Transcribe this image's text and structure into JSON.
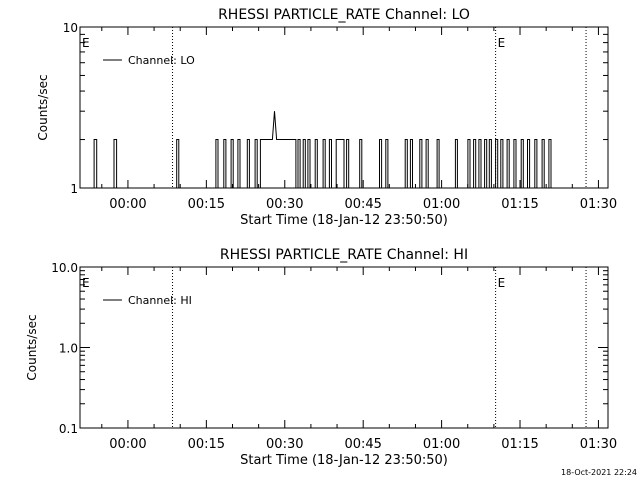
{
  "footer": {
    "timestamp": "18-Oct-2021 22:24"
  },
  "chart_data": [
    {
      "type": "line",
      "title": "RHESSI PARTICLE_RATE Channel: LO",
      "xlabel": "Start Time (18-Jan-12 23:50:50)",
      "ylabel": "Counts/sec",
      "x_tick_labels": [
        "00:00",
        "00:15",
        "00:30",
        "00:45",
        "01:00",
        "01:15",
        "01:30"
      ],
      "x_tick_minutes": [
        9.17,
        24.17,
        39.17,
        54.17,
        69.17,
        84.17,
        99.17
      ],
      "xlim_minutes": [
        0,
        101
      ],
      "y_scale": "log",
      "ylim": [
        1,
        10
      ],
      "y_tick_labels": [
        "1",
        "10"
      ],
      "y_tick_values": [
        1,
        10
      ],
      "legend": {
        "label": "Channel: LO",
        "placement": "top-left"
      },
      "markers": [
        {
          "minute": 0.0,
          "label": "E"
        },
        {
          "minute": 17.7,
          "label": ""
        },
        {
          "minute": 79.5,
          "label": "E"
        },
        {
          "minute": 96.8,
          "label": ""
        }
      ],
      "series": [
        {
          "name": "Channel: LO",
          "points": [
            [
              0,
              1
            ],
            [
              2.7,
              1
            ],
            [
              2.7,
              2
            ],
            [
              3.2,
              2
            ],
            [
              3.2,
              1
            ],
            [
              6.5,
              1
            ],
            [
              6.5,
              2
            ],
            [
              7,
              2
            ],
            [
              7,
              1
            ],
            [
              18.5,
              1
            ],
            [
              18.5,
              2
            ],
            [
              18.9,
              2
            ],
            [
              18.9,
              1
            ],
            [
              26,
              1
            ],
            [
              26,
              2
            ],
            [
              26.4,
              2
            ],
            [
              26.4,
              1
            ],
            [
              27.5,
              1
            ],
            [
              27.5,
              2
            ],
            [
              27.9,
              2
            ],
            [
              27.9,
              1
            ],
            [
              28.9,
              1
            ],
            [
              28.9,
              2
            ],
            [
              29.3,
              2
            ],
            [
              29.3,
              1
            ],
            [
              30.2,
              1
            ],
            [
              30.2,
              2
            ],
            [
              30.6,
              2
            ],
            [
              30.6,
              1
            ],
            [
              32,
              1
            ],
            [
              32,
              2
            ],
            [
              32.4,
              2
            ],
            [
              32.4,
              1
            ],
            [
              33.5,
              1
            ],
            [
              33.5,
              2
            ],
            [
              33.9,
              2
            ],
            [
              33.9,
              1
            ],
            [
              34.5,
              1
            ],
            [
              34.5,
              2
            ],
            [
              36.8,
              2
            ],
            [
              37.2,
              3
            ],
            [
              37.6,
              2
            ],
            [
              41.3,
              2
            ],
            [
              41.3,
              1
            ],
            [
              41.7,
              1
            ],
            [
              41.7,
              2
            ],
            [
              42.1,
              2
            ],
            [
              42.1,
              1
            ],
            [
              42.7,
              1
            ],
            [
              42.7,
              2
            ],
            [
              43.1,
              2
            ],
            [
              43.1,
              1
            ],
            [
              43.6,
              1
            ],
            [
              43.6,
              2
            ],
            [
              44,
              2
            ],
            [
              44,
              1
            ],
            [
              45,
              1
            ],
            [
              45,
              2
            ],
            [
              45.4,
              2
            ],
            [
              45.4,
              1
            ],
            [
              46.5,
              1
            ],
            [
              46.5,
              2
            ],
            [
              46.9,
              2
            ],
            [
              46.9,
              1
            ],
            [
              47.7,
              1
            ],
            [
              47.7,
              2
            ],
            [
              48.1,
              2
            ],
            [
              48.1,
              1
            ],
            [
              49,
              1
            ],
            [
              49,
              2
            ],
            [
              50.5,
              2
            ],
            [
              50.5,
              1
            ],
            [
              51,
              1
            ],
            [
              51,
              2
            ],
            [
              51.4,
              2
            ],
            [
              51.4,
              1
            ],
            [
              53.5,
              1
            ],
            [
              53.5,
              2
            ],
            [
              53.9,
              2
            ],
            [
              53.9,
              1
            ],
            [
              57.3,
              1
            ],
            [
              57.3,
              2
            ],
            [
              57.7,
              2
            ],
            [
              57.7,
              1
            ],
            [
              58.5,
              1
            ],
            [
              58.5,
              2
            ],
            [
              58.9,
              2
            ],
            [
              58.9,
              1
            ],
            [
              62.2,
              1
            ],
            [
              62.2,
              2
            ],
            [
              62.6,
              2
            ],
            [
              62.6,
              1
            ],
            [
              63.2,
              1
            ],
            [
              63.2,
              2
            ],
            [
              63.6,
              2
            ],
            [
              63.6,
              1
            ],
            [
              65,
              1
            ],
            [
              65,
              2
            ],
            [
              65.4,
              2
            ],
            [
              65.4,
              1
            ],
            [
              66.2,
              1
            ],
            [
              66.2,
              2
            ],
            [
              66.6,
              2
            ],
            [
              66.6,
              1
            ],
            [
              68.3,
              1
            ],
            [
              68.3,
              2
            ],
            [
              68.7,
              2
            ],
            [
              68.7,
              1
            ],
            [
              71.8,
              1
            ],
            [
              71.8,
              2
            ],
            [
              72.2,
              2
            ],
            [
              72.2,
              1
            ],
            [
              74.2,
              1
            ],
            [
              74.2,
              2
            ],
            [
              74.6,
              2
            ],
            [
              74.6,
              1
            ],
            [
              75.3,
              1
            ],
            [
              75.3,
              2
            ],
            [
              75.7,
              2
            ],
            [
              75.7,
              1
            ],
            [
              76.3,
              1
            ],
            [
              76.3,
              2
            ],
            [
              76.7,
              2
            ],
            [
              76.7,
              1
            ],
            [
              77.4,
              1
            ],
            [
              77.4,
              2
            ],
            [
              77.8,
              2
            ],
            [
              77.8,
              1
            ],
            [
              78.3,
              1
            ],
            [
              78.3,
              2
            ],
            [
              78.7,
              2
            ],
            [
              78.7,
              1
            ],
            [
              79.5,
              1
            ],
            [
              79.5,
              2
            ],
            [
              79.9,
              2
            ],
            [
              79.9,
              1
            ],
            [
              80.5,
              1
            ],
            [
              80.5,
              2
            ],
            [
              80.9,
              2
            ],
            [
              80.9,
              1
            ],
            [
              81.7,
              1
            ],
            [
              81.7,
              2
            ],
            [
              82.1,
              2
            ],
            [
              82.1,
              1
            ],
            [
              83,
              1
            ],
            [
              83,
              2
            ],
            [
              83.4,
              2
            ],
            [
              83.4,
              1
            ],
            [
              84.4,
              1
            ],
            [
              84.4,
              2
            ],
            [
              84.8,
              2
            ],
            [
              84.8,
              1
            ],
            [
              85.6,
              1
            ],
            [
              85.6,
              2
            ],
            [
              86,
              2
            ],
            [
              86,
              1
            ],
            [
              87,
              1
            ],
            [
              87,
              2
            ],
            [
              87.4,
              2
            ],
            [
              87.4,
              1
            ],
            [
              88.4,
              1
            ],
            [
              88.4,
              2
            ],
            [
              88.8,
              2
            ],
            [
              88.8,
              1
            ],
            [
              89.7,
              1
            ],
            [
              89.7,
              2
            ],
            [
              90.1,
              2
            ],
            [
              90.1,
              1
            ],
            [
              101,
              1
            ]
          ]
        }
      ]
    },
    {
      "type": "line",
      "title": "RHESSI PARTICLE_RATE Channel: HI",
      "xlabel": "Start Time (18-Jan-12 23:50:50)",
      "ylabel": "Counts/sec",
      "x_tick_labels": [
        "00:00",
        "00:15",
        "00:30",
        "00:45",
        "01:00",
        "01:15",
        "01:30"
      ],
      "x_tick_minutes": [
        9.17,
        24.17,
        39.17,
        54.17,
        69.17,
        84.17,
        99.17
      ],
      "xlim_minutes": [
        0,
        101
      ],
      "y_scale": "log",
      "ylim": [
        0.1,
        10
      ],
      "y_tick_labels": [
        "0.1",
        "1.0",
        "10.0"
      ],
      "y_tick_values": [
        0.1,
        1,
        10
      ],
      "legend": {
        "label": "Channel: HI",
        "placement": "top-left"
      },
      "markers": [
        {
          "minute": 0.0,
          "label": "E"
        },
        {
          "minute": 17.7,
          "label": ""
        },
        {
          "minute": 79.5,
          "label": "E"
        },
        {
          "minute": 96.8,
          "label": ""
        }
      ],
      "series": [
        {
          "name": "Channel: HI",
          "points": []
        }
      ]
    }
  ]
}
